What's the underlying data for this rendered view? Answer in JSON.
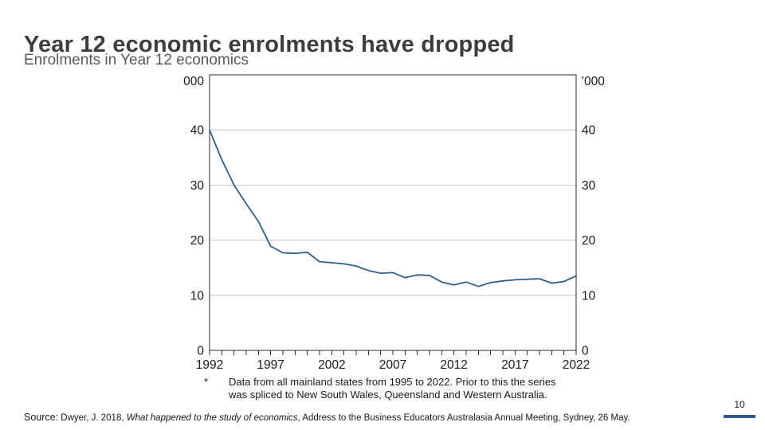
{
  "slide": {
    "title": "Year 12 economic enrolments have dropped",
    "subtitle": "Enrolments in Year 12 economics",
    "page_number": "10",
    "page_bar_color": "#2E5E8E"
  },
  "footnote": {
    "marker": "*",
    "line1": "Data from all mainland states from 1995 to 2022. Prior to this the series",
    "line2": "was spliced to New South Wales, Queensland and Western Australia."
  },
  "source": {
    "label": "Source:",
    "pre": " Dwyer, J. 2018, ",
    "italic": "What happened to the study of economics",
    "post": ", Address to the Business Educators Australasia Annual Meeting, Sydney, 26 May."
  },
  "chart_data": {
    "type": "line",
    "title": "Enrolments in Year 12 economics",
    "unit_label": "'000",
    "xlabel": "",
    "ylabel": "'000 enrolments",
    "x": [
      1992,
      1993,
      1994,
      1995,
      1996,
      1997,
      1998,
      1999,
      2000,
      2001,
      2002,
      2003,
      2004,
      2005,
      2006,
      2007,
      2008,
      2009,
      2010,
      2011,
      2012,
      2013,
      2014,
      2015,
      2016,
      2017,
      2018,
      2019,
      2020,
      2021,
      2022
    ],
    "values": [
      40.0,
      34.6,
      30.0,
      26.6,
      23.4,
      18.9,
      17.7,
      17.6,
      17.8,
      16.1,
      15.9,
      15.7,
      15.3,
      14.5,
      14.0,
      14.1,
      13.2,
      13.7,
      13.6,
      12.4,
      11.9,
      12.4,
      11.6,
      12.3,
      12.6,
      12.8,
      12.9,
      13.0,
      12.2,
      12.5,
      13.5
    ],
    "ylim": [
      0,
      50
    ],
    "yticks": [
      0,
      10,
      20,
      30,
      40
    ],
    "xticks_labeled": [
      1992,
      1997,
      2002,
      2007,
      2012,
      2017,
      2022
    ],
    "grid": true,
    "legend": "none",
    "line_color": "#2E5E8E",
    "grid_color": "#c9c9c9",
    "frame_color": "#2b2b2b"
  }
}
